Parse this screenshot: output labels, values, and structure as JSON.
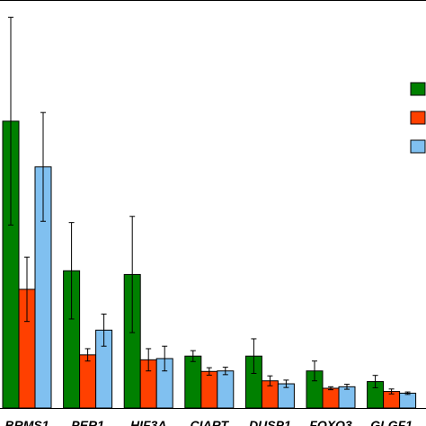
{
  "chart_data": {
    "type": "bar",
    "title": "",
    "xlabel": "",
    "ylabel": "",
    "categories": [
      "BRMS1",
      "PER1",
      "HIF3A",
      "CIART",
      "DUSP1",
      "FOXO3",
      "GLGF1"
    ],
    "ylim": [
      0,
      1.65
    ],
    "grid": false,
    "legend_position": "right",
    "series": [
      {
        "color": "#008000",
        "values": [
          1.16,
          0.555,
          0.54,
          0.21,
          0.21,
          0.15,
          0.107
        ],
        "errors": [
          0.42,
          0.195,
          0.235,
          0.022,
          0.07,
          0.04,
          0.025
        ]
      },
      {
        "color": "#ff4000",
        "values": [
          0.48,
          0.215,
          0.195,
          0.148,
          0.11,
          0.08,
          0.067
        ],
        "errors": [
          0.13,
          0.025,
          0.045,
          0.015,
          0.02,
          0.006,
          0.01
        ]
      },
      {
        "color": "#80c0f0",
        "values": [
          0.975,
          0.315,
          0.2,
          0.15,
          0.098,
          0.086,
          0.06
        ],
        "errors": [
          0.22,
          0.065,
          0.05,
          0.015,
          0.015,
          0.01,
          0.005
        ]
      }
    ]
  }
}
